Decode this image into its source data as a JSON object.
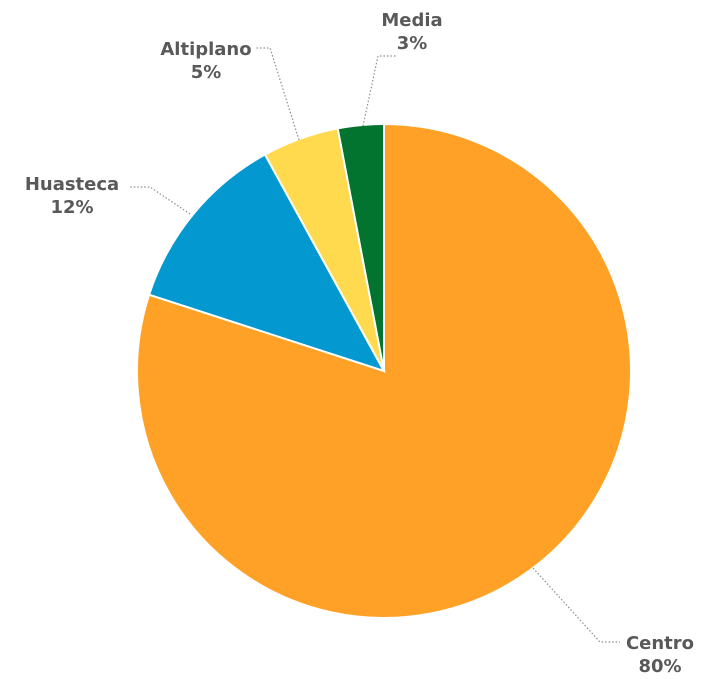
{
  "chart_data": {
    "type": "pie",
    "slices": [
      {
        "label": "Centro",
        "value": 80,
        "display": "80%",
        "color": "#FFA126"
      },
      {
        "label": "Huasteca",
        "value": 12,
        "display": "12%",
        "color": "#0398D0"
      },
      {
        "label": "Altiplano",
        "value": 5,
        "display": "5%",
        "color": "#FFD94E"
      },
      {
        "label": "Media",
        "value": 3,
        "display": "3%",
        "color": "#037330"
      }
    ],
    "start_angle_deg": 0,
    "direction": "clockwise",
    "legend": "none",
    "data_labels": "outside-with-leader-lines"
  }
}
